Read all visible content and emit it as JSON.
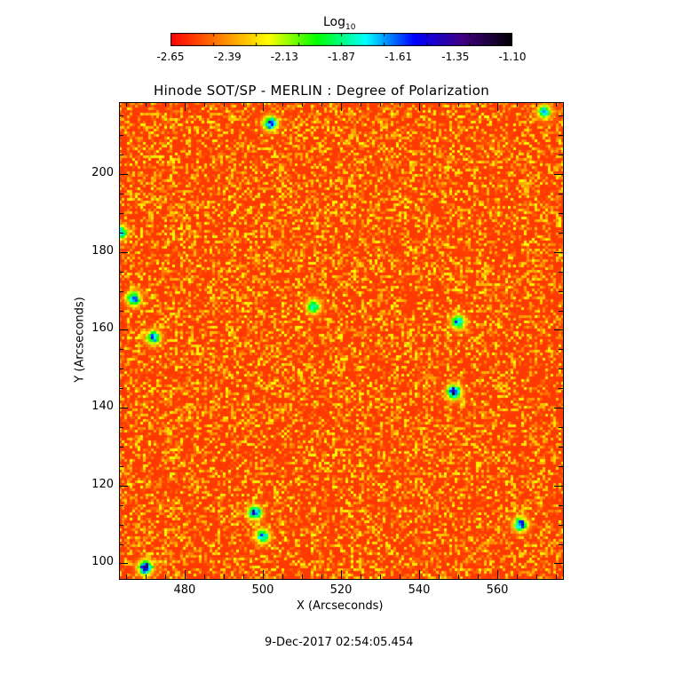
{
  "colorbar": {
    "label_main": "Log",
    "label_sub": "10",
    "ticks": [
      "-2.65",
      "-2.39",
      "-2.13",
      "-1.87",
      "-1.61",
      "-1.35",
      "-1.10"
    ],
    "range": [
      -2.65,
      -1.1
    ],
    "colormap": [
      "#ff0000",
      "#ff8000",
      "#ffff00",
      "#00ff00",
      "#00ffff",
      "#0000ff",
      "#400080",
      "#000000"
    ]
  },
  "chart_data": {
    "type": "heatmap",
    "title": "Hinode SOT/SP - MERLIN : Degree of Polarization",
    "xlabel": "X (Arcseconds)",
    "ylabel": "Y (Arcseconds)",
    "xlim": [
      463.2,
      576.8
    ],
    "ylim": [
      96,
      218.5
    ],
    "xticks": [
      480,
      500,
      520,
      540,
      560
    ],
    "yticks": [
      100,
      120,
      140,
      160,
      180,
      200
    ],
    "value_unit": "Log10 degree of polarization",
    "background_level": -2.55,
    "strong_polarization_regions": [
      {
        "x": 470,
        "y": 99,
        "peak": -1.2
      },
      {
        "x": 549,
        "y": 144,
        "peak": -1.25
      },
      {
        "x": 502,
        "y": 213,
        "peak": -1.5
      },
      {
        "x": 550,
        "y": 162,
        "peak": -1.6
      },
      {
        "x": 498,
        "y": 113,
        "peak": -1.5
      },
      {
        "x": 472,
        "y": 158,
        "peak": -1.6
      },
      {
        "x": 467,
        "y": 168,
        "peak": -1.6
      },
      {
        "x": 513,
        "y": 166,
        "peak": -1.7
      },
      {
        "x": 566,
        "y": 110,
        "peak": -1.5
      },
      {
        "x": 572,
        "y": 216,
        "peak": -1.7
      },
      {
        "x": 463.5,
        "y": 185,
        "peak": -1.6
      },
      {
        "x": 500,
        "y": 107,
        "peak": -1.6
      }
    ]
  },
  "footer": {
    "timestamp": "9-Dec-2017 02:54:05.454"
  }
}
